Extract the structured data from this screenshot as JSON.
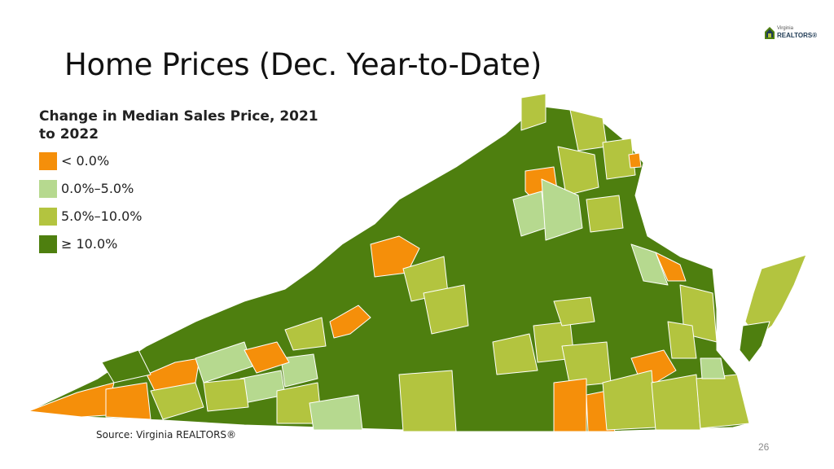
{
  "slide": {
    "title": "Home Prices (Dec. Year-to-Date)",
    "source": "Source: Virginia REALTORS®",
    "page_number": "26"
  },
  "logo": {
    "small_text": "Virginia",
    "big_text": "REALTORS®"
  },
  "legend": {
    "title": "Change in Median Sales Price, 2021 to 2022",
    "items": [
      {
        "label": "< 0.0%",
        "color": "#f58f0a"
      },
      {
        "label": "0.0%–5.0%",
        "color": "#b6d98f"
      },
      {
        "label": "5.0%–10.0%",
        "color": "#b3c43f"
      },
      {
        "label": "≥ 10.0%",
        "color": "#4e7f0f"
      }
    ]
  },
  "map": {
    "region": "Virginia",
    "boundary_color": "#ffffff"
  }
}
